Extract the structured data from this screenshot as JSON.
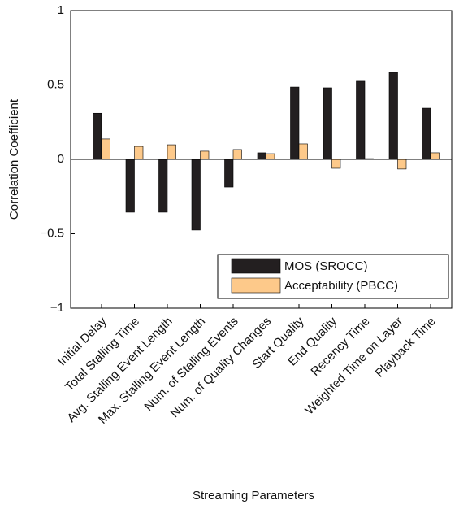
{
  "chart_data": {
    "type": "bar",
    "categories": [
      "Initial Delay",
      "Total Stalling Time",
      "Avg. Stalling Event Length",
      "Max. Stalling Event Length",
      "Num. of Stalling Events",
      "Num. of Quality Changes",
      "Start Quality",
      "End Quality",
      "Recency Time",
      "Weighted Time on Layer",
      "Playback Time"
    ],
    "series": [
      {
        "name": "MOS (SROCC)",
        "color": "#231f20",
        "values": [
          0.31,
          -0.355,
          -0.355,
          -0.475,
          -0.186,
          0.044,
          0.486,
          0.481,
          0.525,
          0.585,
          0.344
        ]
      },
      {
        "name": "Acceptability (PBCC)",
        "color": "#fdc98a",
        "values": [
          0.137,
          0.087,
          0.098,
          0.055,
          0.066,
          0.038,
          0.104,
          -0.06,
          0.005,
          -0.065,
          0.044
        ]
      }
    ],
    "ylabel": "Correlation Coefficient",
    "xlabel": "Streaming Parameters",
    "ylim": [
      -1,
      1
    ],
    "yticks": [
      {
        "value": -1,
        "label": "−1"
      },
      {
        "value": -0.5,
        "label": "−0.5"
      },
      0,
      0.5,
      1
    ],
    "legend": "lower right",
    "grid": false
  }
}
